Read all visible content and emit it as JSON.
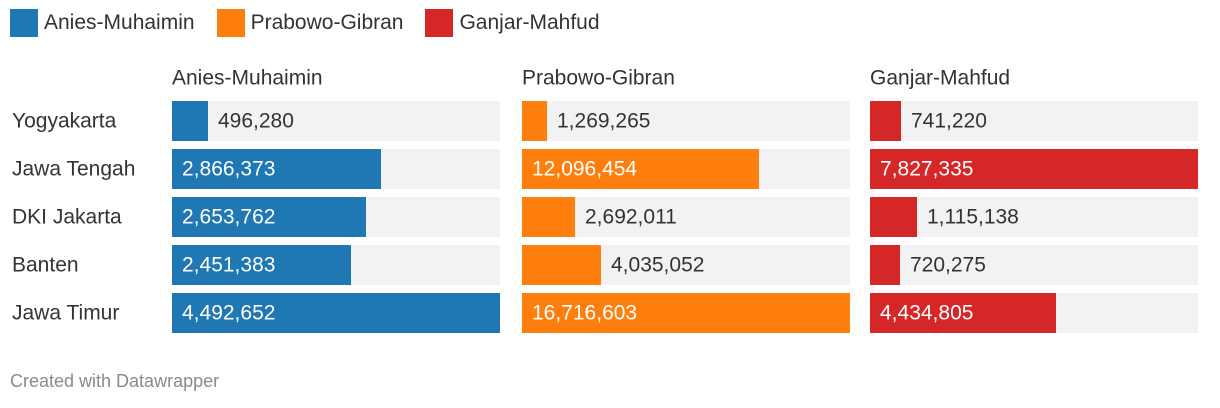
{
  "legend": [
    {
      "label": "Anies-Muhaimin",
      "color": "#1f77b4"
    },
    {
      "label": "Prabowo-Gibran",
      "color": "#ff7f0e"
    },
    {
      "label": "Ganjar-Mahfud",
      "color": "#d62728"
    }
  ],
  "footer": "Created with Datawrapper",
  "chart_data": {
    "type": "bar",
    "orientation": "horizontal",
    "layout": "small-multiples",
    "categories": [
      "Yogyakarta",
      "Jawa Tengah",
      "DKI Jakarta",
      "Banten",
      "Jawa Timur"
    ],
    "series": [
      {
        "name": "Anies-Muhaimin",
        "color": "#1f77b4",
        "values": [
          496280,
          2866373,
          2653762,
          2451383,
          4492652
        ],
        "labels": [
          "496,280",
          "2,866,373",
          "2,653,762",
          "2,451,383",
          "4,492,652"
        ]
      },
      {
        "name": "Prabowo-Gibran",
        "color": "#ff7f0e",
        "values": [
          1269265,
          12096454,
          2692011,
          4035052,
          16716603
        ],
        "labels": [
          "1,269,265",
          "12,096,454",
          "2,692,011",
          "4,035,052",
          "16,716,603"
        ]
      },
      {
        "name": "Ganjar-Mahfud",
        "color": "#d62728",
        "values": [
          741220,
          7827335,
          1115138,
          720275,
          4434805
        ],
        "labels": [
          "741,220",
          "7,827,335",
          "1,115,138",
          "720,275",
          "4,434,805"
        ]
      }
    ],
    "shared_scale": false,
    "grid": false,
    "legend_position": "top-left",
    "background_track_color": "#f2f2f2"
  }
}
